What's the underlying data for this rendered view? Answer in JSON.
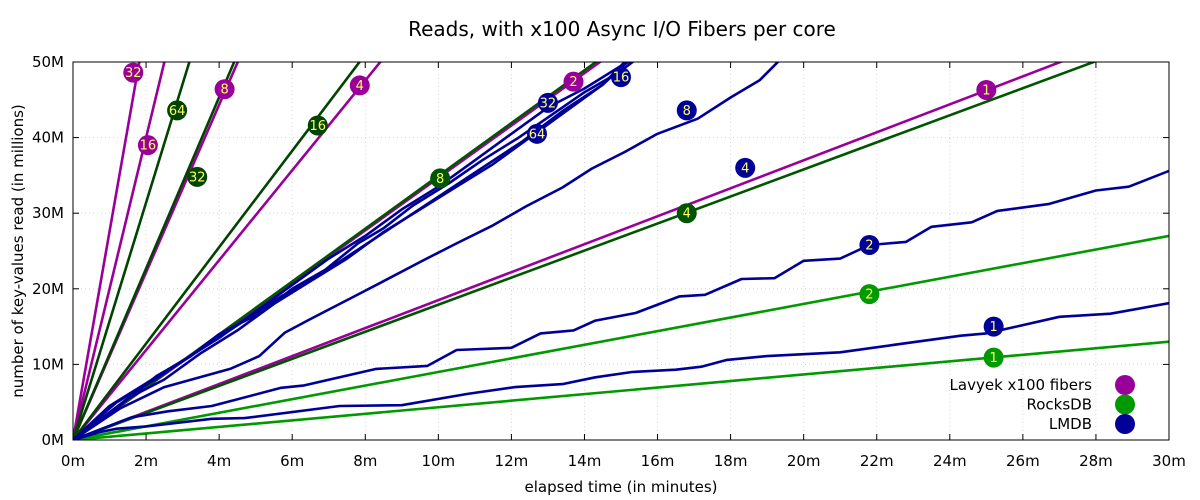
{
  "chart_data": {
    "type": "line",
    "title": "Reads, with x100 Async I/O Fibers per core",
    "xlabel": "elapsed time (in minutes)",
    "ylabel": "number of key-values read (in millions)",
    "xlim": [
      0,
      30
    ],
    "ylim": [
      0,
      50
    ],
    "x_ticks": [
      0,
      2,
      4,
      6,
      8,
      10,
      12,
      14,
      16,
      18,
      20,
      22,
      24,
      26,
      28,
      30
    ],
    "x_tick_labels": [
      "0m",
      "2m",
      "4m",
      "6m",
      "8m",
      "10m",
      "12m",
      "14m",
      "16m",
      "18m",
      "20m",
      "22m",
      "24m",
      "26m",
      "28m",
      "30m"
    ],
    "y_ticks": [
      0,
      10,
      20,
      30,
      40,
      50
    ],
    "y_tick_labels": [
      "0M",
      "10M",
      "20M",
      "30M",
      "40M",
      "50M"
    ],
    "legend": [
      {
        "name": "Lavyek x100 fibers",
        "color": "#990099"
      },
      {
        "name": "RocksDB",
        "color": "#009900"
      },
      {
        "name": "LMDB",
        "color": "#000099"
      }
    ],
    "legend_position": "bottom-right",
    "series": [
      {
        "db": "Lavyek x100 fibers",
        "threads": "1",
        "color": "#990099",
        "points": [
          [
            0,
            0
          ],
          [
            30,
            55.5
          ]
        ],
        "marker": [
          25.0,
          46.3
        ]
      },
      {
        "db": "Lavyek x100 fibers",
        "threads": "2",
        "color": "#990099",
        "points": [
          [
            0,
            0
          ],
          [
            15,
            52
          ]
        ],
        "marker": [
          13.7,
          47.4
        ]
      },
      {
        "db": "Lavyek x100 fibers",
        "threads": "4",
        "color": "#990099",
        "points": [
          [
            0,
            0
          ],
          [
            9,
            53.5
          ]
        ],
        "marker": [
          7.85,
          46.9
        ]
      },
      {
        "db": "Lavyek x100 fibers",
        "threads": "8",
        "color": "#990099",
        "points": [
          [
            0,
            0
          ],
          [
            4.6,
            51
          ]
        ],
        "marker": [
          4.15,
          46.4
        ]
      },
      {
        "db": "Lavyek x100 fibers",
        "threads": "16",
        "color": "#990099",
        "points": [
          [
            0,
            0
          ],
          [
            2.55,
            51
          ]
        ],
        "marker": [
          2.05,
          39.0
        ]
      },
      {
        "db": "Lavyek x100 fibers",
        "threads": "32",
        "color": "#990099",
        "points": [
          [
            0,
            0
          ],
          [
            1.85,
            51
          ]
        ],
        "marker": [
          1.65,
          48.6
        ]
      },
      {
        "db": "RocksDB",
        "threads": "1",
        "color": "#009900",
        "points": [
          [
            0,
            0
          ],
          [
            30,
            13.0
          ]
        ],
        "marker": [
          25.2,
          10.9
        ]
      },
      {
        "db": "RocksDB",
        "threads": "2",
        "color": "#009900",
        "points": [
          [
            0,
            0
          ],
          [
            30,
            27.0
          ]
        ],
        "marker": [
          21.8,
          19.3
        ]
      },
      {
        "db": "RocksDB",
        "threads": "4",
        "color": "#005500",
        "points": [
          [
            0,
            0
          ],
          [
            28.5,
            51
          ]
        ],
        "marker": [
          16.8,
          30.0
        ]
      },
      {
        "db": "RocksDB",
        "threads": "8",
        "color": "#005500",
        "points": [
          [
            0,
            0
          ],
          [
            14.6,
            51
          ]
        ],
        "marker": [
          10.05,
          34.6
        ]
      },
      {
        "db": "RocksDB",
        "threads": "16",
        "color": "#004400",
        "points": [
          [
            0,
            0
          ],
          [
            8.0,
            51
          ]
        ],
        "marker": [
          6.7,
          41.6
        ]
      },
      {
        "db": "RocksDB",
        "threads": "32",
        "color": "#004400",
        "points": [
          [
            0,
            0
          ],
          [
            4.5,
            51
          ]
        ],
        "marker": [
          3.4,
          34.8
        ]
      },
      {
        "db": "RocksDB",
        "threads": "64",
        "color": "#004400",
        "points": [
          [
            0,
            0
          ],
          [
            3.25,
            51
          ]
        ],
        "marker": [
          2.85,
          43.6
        ]
      },
      {
        "db": "LMDB",
        "threads": "1",
        "color": "#000099",
        "points": [
          [
            0,
            0
          ],
          [
            0.7,
            1
          ],
          [
            1.2,
            1.5
          ],
          [
            2.0,
            1.8
          ],
          [
            3.8,
            2.8
          ],
          [
            4.7,
            2.9
          ],
          [
            7.3,
            4.5
          ],
          [
            9.0,
            4.6
          ],
          [
            10.8,
            6.1
          ],
          [
            12.1,
            7.0
          ],
          [
            13.4,
            7.4
          ],
          [
            14.3,
            8.3
          ],
          [
            15.3,
            9.0
          ],
          [
            16.5,
            9.3
          ],
          [
            17.2,
            9.7
          ],
          [
            17.9,
            10.6
          ],
          [
            19.0,
            11.1
          ],
          [
            21.0,
            11.6
          ],
          [
            22.5,
            12.6
          ],
          [
            24.3,
            13.8
          ],
          [
            25.0,
            14.1
          ],
          [
            27.0,
            16.3
          ],
          [
            28.4,
            16.7
          ],
          [
            30.0,
            18.1
          ]
        ],
        "marker": [
          25.2,
          15.0
        ]
      },
      {
        "db": "LMDB",
        "threads": "2",
        "color": "#000099",
        "points": [
          [
            0,
            0
          ],
          [
            1.6,
            3
          ],
          [
            2.6,
            3.8
          ],
          [
            3.8,
            4.5
          ],
          [
            5.7,
            6.9
          ],
          [
            6.3,
            7.2
          ],
          [
            8.3,
            9.4
          ],
          [
            9.7,
            9.8
          ],
          [
            10.5,
            11.9
          ],
          [
            12.0,
            12.2
          ],
          [
            12.8,
            14.1
          ],
          [
            13.7,
            14.5
          ],
          [
            14.3,
            15.8
          ],
          [
            15.4,
            16.8
          ],
          [
            16.6,
            19.0
          ],
          [
            17.3,
            19.2
          ],
          [
            18.3,
            21.3
          ],
          [
            19.2,
            21.4
          ],
          [
            20.0,
            23.7
          ],
          [
            21.0,
            24.0
          ],
          [
            21.8,
            25.8
          ],
          [
            22.8,
            26.2
          ],
          [
            23.5,
            28.2
          ],
          [
            24.6,
            28.8
          ],
          [
            25.3,
            30.3
          ],
          [
            26.7,
            31.2
          ],
          [
            28.0,
            33.0
          ],
          [
            28.9,
            33.5
          ],
          [
            30.0,
            35.6
          ]
        ],
        "marker": [
          21.8,
          25.8
        ]
      },
      {
        "db": "LMDB",
        "threads": "4",
        "color": "#000099",
        "points": [
          [
            0,
            0
          ],
          [
            1.3,
            4.2
          ],
          [
            2.5,
            7.0
          ],
          [
            4.3,
            9.4
          ],
          [
            5.1,
            11.1
          ],
          [
            5.8,
            14.2
          ],
          [
            6.5,
            16.0
          ],
          [
            7.7,
            19.0
          ],
          [
            8.5,
            21.0
          ],
          [
            9.6,
            23.8
          ],
          [
            10.5,
            26.0
          ],
          [
            11.5,
            28.4
          ],
          [
            12.4,
            30.9
          ],
          [
            13.4,
            33.4
          ],
          [
            14.2,
            35.9
          ],
          [
            15.1,
            38.1
          ],
          [
            16.0,
            40.5
          ],
          [
            17.1,
            42.5
          ],
          [
            18.0,
            45.3
          ],
          [
            18.8,
            47.6
          ],
          [
            19.5,
            51.0
          ]
        ],
        "marker": [
          18.4,
          36.0
        ]
      },
      {
        "db": "LMDB",
        "threads": "8",
        "color": "#000099",
        "points": [
          [
            0,
            0
          ],
          [
            1.0,
            3.5
          ],
          [
            2.3,
            8.5
          ],
          [
            3.2,
            11.0
          ],
          [
            4.0,
            14.0
          ],
          [
            5.2,
            17.0
          ],
          [
            6.0,
            20.0
          ],
          [
            6.9,
            22.5
          ],
          [
            7.8,
            26.0
          ],
          [
            8.5,
            28.0
          ],
          [
            9.3,
            31.0
          ],
          [
            10.3,
            34.0
          ],
          [
            11.2,
            37.0
          ],
          [
            12.2,
            40.0
          ],
          [
            13.1,
            43.0
          ],
          [
            14.0,
            46.0
          ],
          [
            14.9,
            48.5
          ],
          [
            15.6,
            51.0
          ]
        ],
        "marker": [
          16.8,
          43.6
        ]
      },
      {
        "db": "LMDB",
        "threads": "16",
        "color": "#000099",
        "points": [
          [
            0,
            0
          ],
          [
            1.0,
            4.5
          ],
          [
            2.0,
            7.5
          ],
          [
            3.0,
            10.5
          ],
          [
            4.0,
            13.5
          ],
          [
            5.0,
            17.0
          ],
          [
            6.0,
            20.5
          ],
          [
            7.0,
            24.0
          ],
          [
            8.0,
            27.0
          ],
          [
            9.0,
            30.5
          ],
          [
            10.0,
            33.5
          ],
          [
            11.0,
            37.0
          ],
          [
            12.0,
            40.5
          ],
          [
            13.0,
            44.0
          ],
          [
            14.0,
            46.5
          ],
          [
            15.0,
            49.5
          ],
          [
            15.6,
            51.0
          ]
        ],
        "marker": [
          15.0,
          48.0
        ]
      },
      {
        "db": "LMDB",
        "threads": "32",
        "color": "#000099",
        "points": [
          [
            0,
            0
          ],
          [
            1.2,
            5.0
          ],
          [
            2.4,
            8.5
          ],
          [
            3.5,
            12.0
          ],
          [
            4.6,
            15.5
          ],
          [
            5.7,
            19.0
          ],
          [
            6.8,
            22.0
          ],
          [
            7.9,
            25.5
          ],
          [
            9.0,
            29.0
          ],
          [
            10.1,
            32.5
          ],
          [
            11.2,
            36.0
          ],
          [
            12.3,
            39.5
          ],
          [
            13.4,
            43.5
          ],
          [
            14.5,
            47.0
          ],
          [
            15.4,
            51.0
          ]
        ],
        "marker": [
          13.0,
          44.6
        ]
      },
      {
        "db": "LMDB",
        "threads": "64",
        "color": "#000099",
        "points": [
          [
            0,
            0
          ],
          [
            1.5,
            5.5
          ],
          [
            2.5,
            8.0
          ],
          [
            3.5,
            11.5
          ],
          [
            4.5,
            14.5
          ],
          [
            5.5,
            18.0
          ],
          [
            6.5,
            21.0
          ],
          [
            7.5,
            24.0
          ],
          [
            8.5,
            27.5
          ],
          [
            9.5,
            30.5
          ],
          [
            10.5,
            33.5
          ],
          [
            11.5,
            36.5
          ],
          [
            12.5,
            40.0
          ],
          [
            13.5,
            43.5
          ],
          [
            14.5,
            47.0
          ],
          [
            15.3,
            51.0
          ]
        ],
        "marker": [
          12.7,
          40.5
        ]
      }
    ]
  }
}
